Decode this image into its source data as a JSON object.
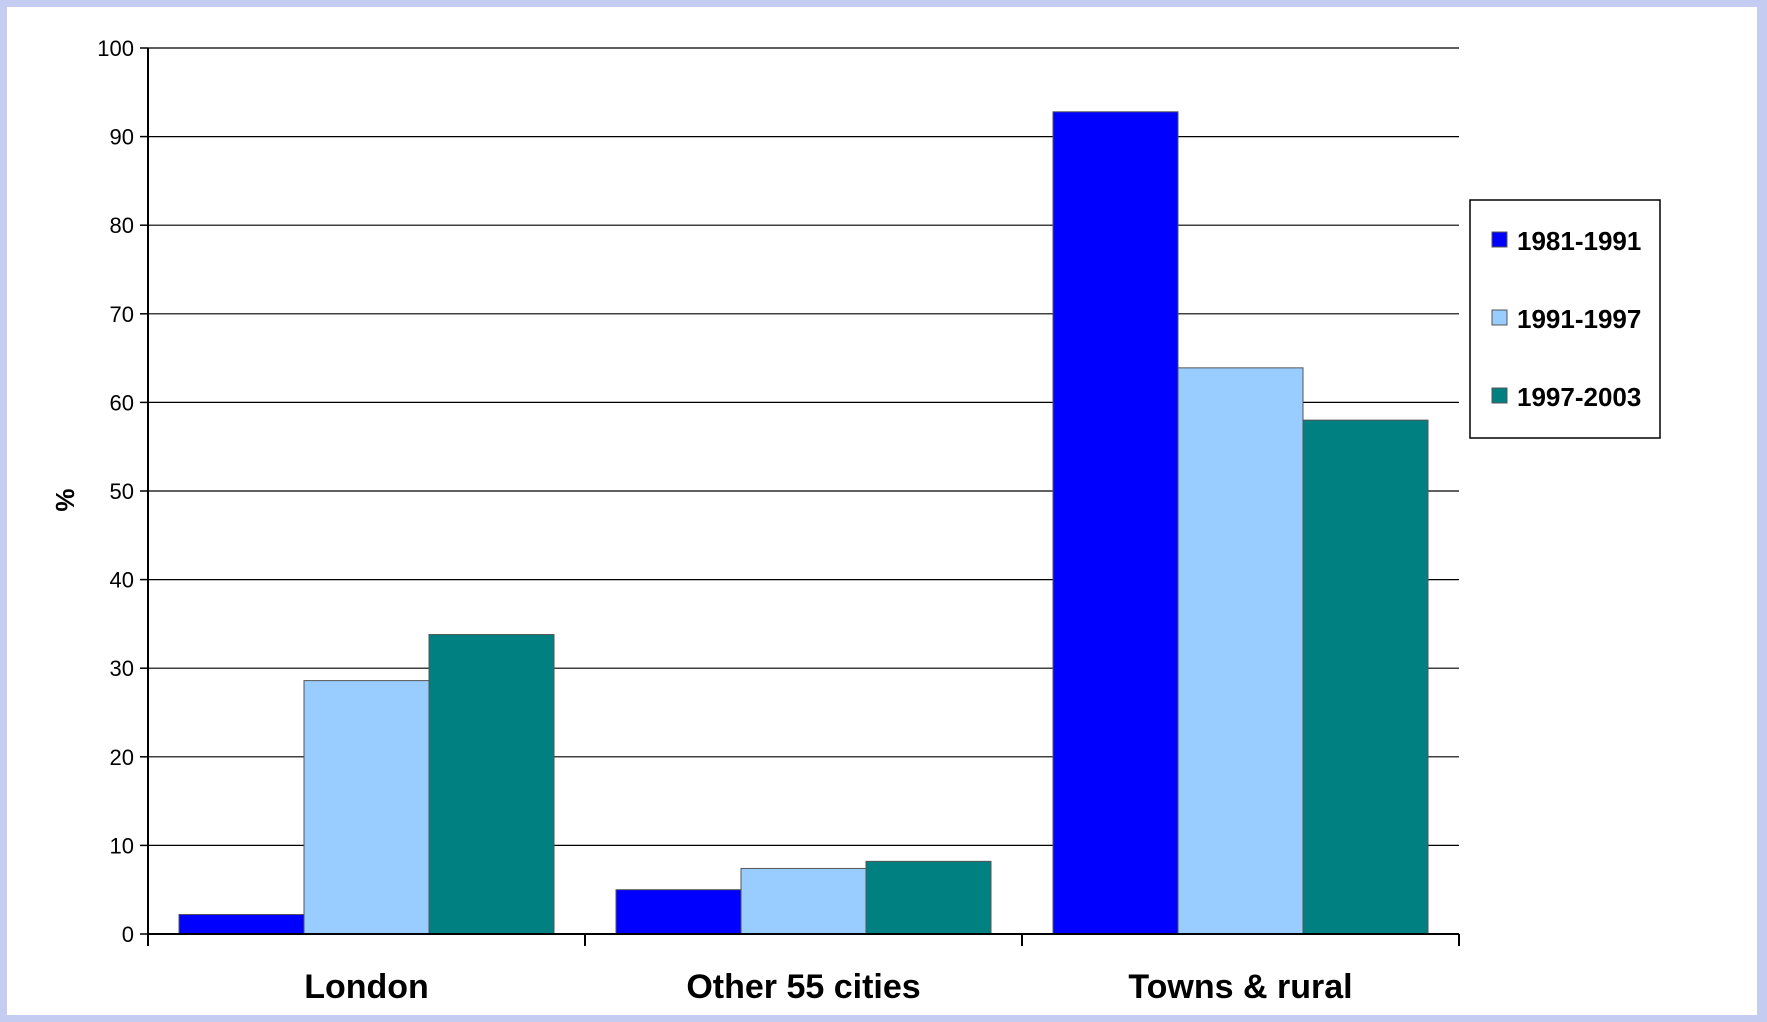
{
  "chart_data": {
    "type": "bar",
    "categories": [
      "London",
      "Other 55 cities",
      "Towns & rural"
    ],
    "series": [
      {
        "name": "1981-1991",
        "color": "#0000ff",
        "values": [
          2.2,
          5.0,
          92.8
        ]
      },
      {
        "name": "1991-1997",
        "color": "#99ccff",
        "values": [
          28.6,
          7.4,
          63.9
        ]
      },
      {
        "name": "1997-2003",
        "color": "#008080",
        "values": [
          33.8,
          8.2,
          58.0
        ]
      }
    ],
    "title": "",
    "xlabel": "",
    "ylabel": "%",
    "ylim": [
      0,
      100
    ],
    "yticks": [
      0,
      10,
      20,
      30,
      40,
      50,
      60,
      70,
      80,
      90,
      100
    ],
    "grid": true,
    "legend_position": "right"
  }
}
